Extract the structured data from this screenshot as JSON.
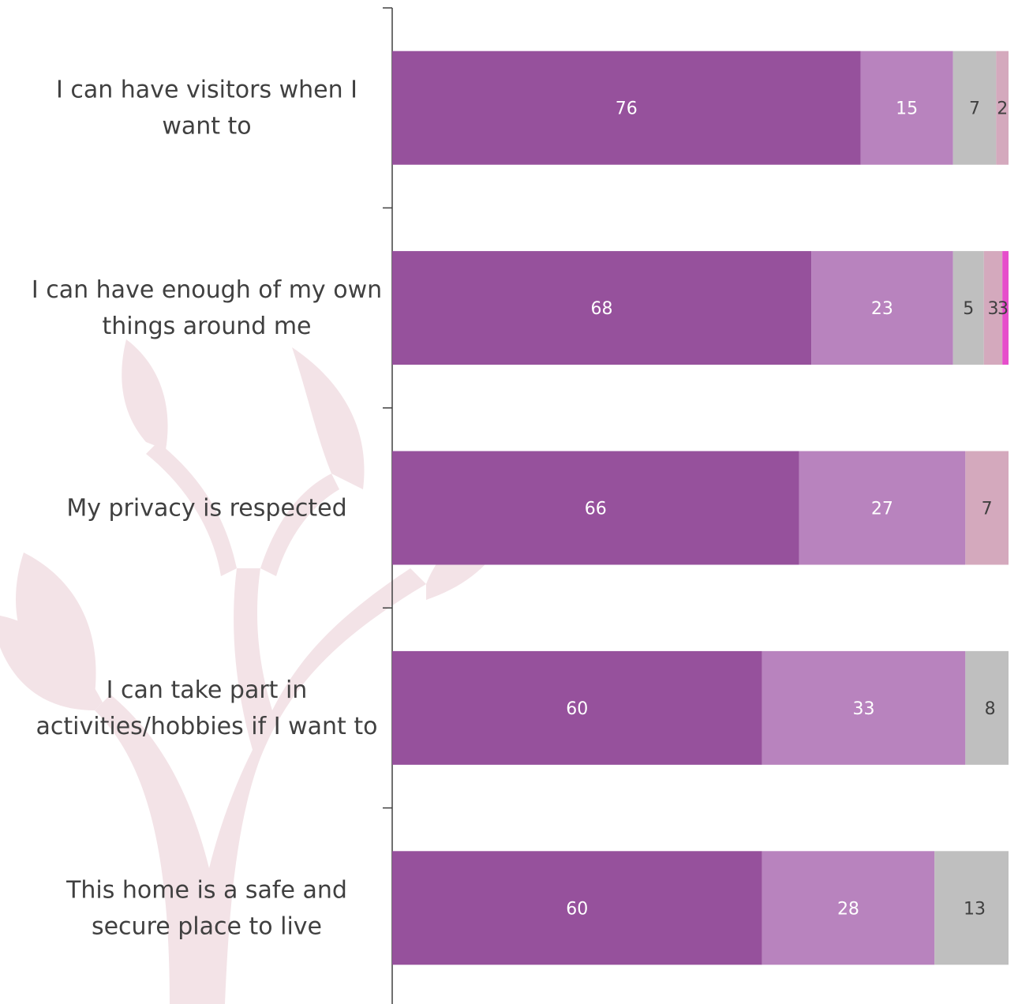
{
  "chart_data": {
    "type": "bar",
    "orientation": "horizontal",
    "stacked": true,
    "xlim": [
      0,
      100
    ],
    "categories": [
      [
        "I can have visitors when I",
        "want to"
      ],
      [
        "I can have enough of my own",
        "things around me"
      ],
      [
        "My privacy is respected"
      ],
      [
        "I can take part in",
        "activities/hobbies if I want to"
      ],
      [
        "This home is a safe and",
        "secure place to live"
      ]
    ],
    "series": [
      {
        "color": "#96519c",
        "label_color": "#ffffff",
        "values": [
          76,
          68,
          66,
          60,
          60
        ]
      },
      {
        "color": "#b883be",
        "label_color": "#ffffff",
        "values": [
          15,
          23,
          27,
          33,
          28
        ]
      },
      {
        "color": "#bfbfbf",
        "label_color": "#404040",
        "values": [
          7,
          5,
          0,
          8,
          13
        ]
      },
      {
        "color": "#d4a9bd",
        "label_color": "#404040",
        "values": [
          2,
          3,
          7,
          0,
          0
        ]
      },
      {
        "color": "#e64ecb",
        "label_color": "#404040",
        "values": [
          0,
          3,
          0,
          0,
          0
        ]
      }
    ],
    "grid": false,
    "legend": "none",
    "background": "tree-watermark"
  }
}
